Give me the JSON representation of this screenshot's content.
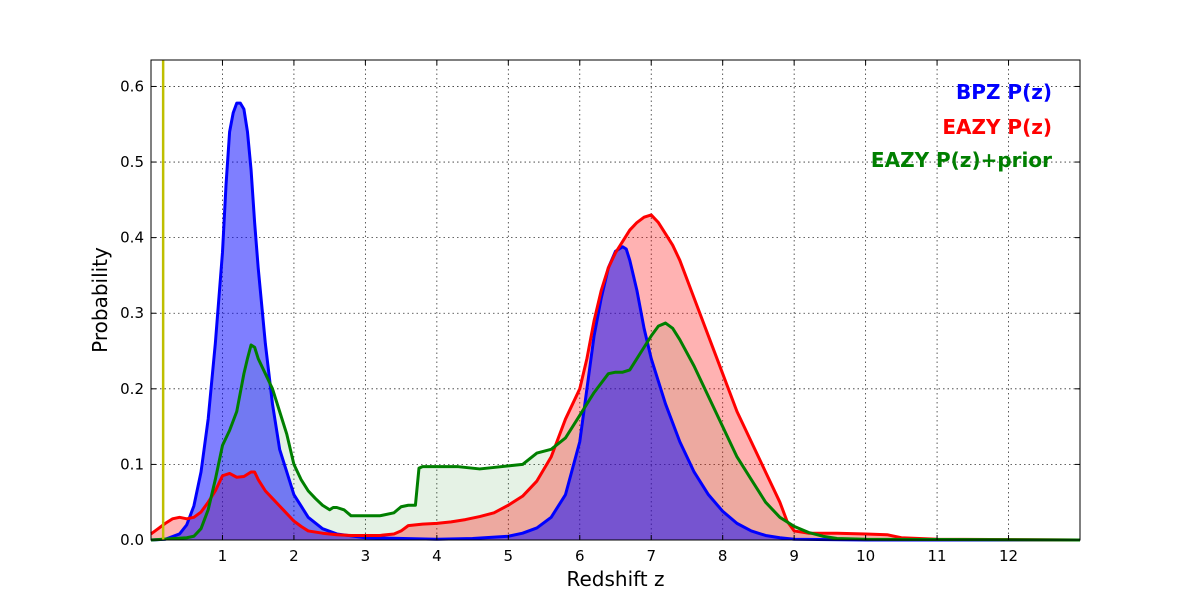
{
  "chart_data": {
    "type": "area",
    "xlabel": "Redshift z",
    "ylabel": "Probability",
    "xlim": [
      0,
      13
    ],
    "ylim": [
      0,
      0.635
    ],
    "x_ticks": [
      1,
      2,
      3,
      4,
      5,
      6,
      7,
      8,
      9,
      10,
      11,
      12
    ],
    "y_ticks": [
      0.0,
      0.1,
      0.2,
      0.3,
      0.4,
      0.5,
      0.6
    ],
    "y_tick_labels": [
      "0.0",
      "0.1",
      "0.2",
      "0.3",
      "0.4",
      "0.5",
      "0.6"
    ],
    "grid": true,
    "legend_placement": "top-right",
    "vertical_marker": {
      "x": 0.17,
      "color": "#bfbf00"
    },
    "series": [
      {
        "name": "BPZ P(z)",
        "color": "#0000ff",
        "fill": "#0000ff",
        "fill_opacity": 0.5,
        "points": [
          [
            0,
            0
          ],
          [
            0.2,
            0.001
          ],
          [
            0.4,
            0.008
          ],
          [
            0.5,
            0.02
          ],
          [
            0.6,
            0.045
          ],
          [
            0.7,
            0.09
          ],
          [
            0.8,
            0.16
          ],
          [
            0.9,
            0.26
          ],
          [
            1.0,
            0.38
          ],
          [
            1.05,
            0.47
          ],
          [
            1.1,
            0.54
          ],
          [
            1.15,
            0.565
          ],
          [
            1.2,
            0.578
          ],
          [
            1.25,
            0.578
          ],
          [
            1.3,
            0.57
          ],
          [
            1.35,
            0.54
          ],
          [
            1.4,
            0.49
          ],
          [
            1.45,
            0.42
          ],
          [
            1.5,
            0.36
          ],
          [
            1.55,
            0.31
          ],
          [
            1.6,
            0.26
          ],
          [
            1.7,
            0.18
          ],
          [
            1.8,
            0.12
          ],
          [
            1.9,
            0.09
          ],
          [
            2.0,
            0.06
          ],
          [
            2.1,
            0.045
          ],
          [
            2.2,
            0.03
          ],
          [
            2.4,
            0.015
          ],
          [
            2.6,
            0.008
          ],
          [
            3.0,
            0.003
          ],
          [
            4.0,
            0.001
          ],
          [
            4.5,
            0.002
          ],
          [
            5.0,
            0.005
          ],
          [
            5.2,
            0.009
          ],
          [
            5.4,
            0.016
          ],
          [
            5.6,
            0.03
          ],
          [
            5.8,
            0.06
          ],
          [
            6.0,
            0.13
          ],
          [
            6.1,
            0.2
          ],
          [
            6.2,
            0.27
          ],
          [
            6.3,
            0.32
          ],
          [
            6.4,
            0.36
          ],
          [
            6.5,
            0.382
          ],
          [
            6.6,
            0.388
          ],
          [
            6.65,
            0.385
          ],
          [
            6.7,
            0.37
          ],
          [
            6.8,
            0.33
          ],
          [
            6.9,
            0.28
          ],
          [
            7.0,
            0.24
          ],
          [
            7.2,
            0.18
          ],
          [
            7.4,
            0.13
          ],
          [
            7.6,
            0.09
          ],
          [
            7.8,
            0.06
          ],
          [
            8.0,
            0.038
          ],
          [
            8.2,
            0.022
          ],
          [
            8.4,
            0.012
          ],
          [
            8.6,
            0.006
          ],
          [
            8.8,
            0.003
          ],
          [
            9.0,
            0.001
          ],
          [
            10,
            0
          ],
          [
            13,
            0
          ]
        ]
      },
      {
        "name": "EAZY P(z)",
        "color": "#ff0000",
        "fill": "#ff0000",
        "fill_opacity": 0.3,
        "points": [
          [
            0,
            0.008
          ],
          [
            0.1,
            0.015
          ],
          [
            0.2,
            0.022
          ],
          [
            0.3,
            0.028
          ],
          [
            0.4,
            0.03
          ],
          [
            0.5,
            0.028
          ],
          [
            0.6,
            0.03
          ],
          [
            0.7,
            0.037
          ],
          [
            0.8,
            0.05
          ],
          [
            0.9,
            0.065
          ],
          [
            1.0,
            0.085
          ],
          [
            1.1,
            0.088
          ],
          [
            1.2,
            0.083
          ],
          [
            1.3,
            0.084
          ],
          [
            1.4,
            0.09
          ],
          [
            1.45,
            0.09
          ],
          [
            1.5,
            0.08
          ],
          [
            1.6,
            0.065
          ],
          [
            1.7,
            0.055
          ],
          [
            1.8,
            0.045
          ],
          [
            1.9,
            0.035
          ],
          [
            2.0,
            0.025
          ],
          [
            2.1,
            0.018
          ],
          [
            2.2,
            0.012
          ],
          [
            2.4,
            0.009
          ],
          [
            2.6,
            0.007
          ],
          [
            2.8,
            0.006
          ],
          [
            3.0,
            0.006
          ],
          [
            3.2,
            0.006
          ],
          [
            3.4,
            0.008
          ],
          [
            3.5,
            0.012
          ],
          [
            3.6,
            0.019
          ],
          [
            3.8,
            0.021
          ],
          [
            4.0,
            0.022
          ],
          [
            4.2,
            0.024
          ],
          [
            4.4,
            0.027
          ],
          [
            4.6,
            0.031
          ],
          [
            4.8,
            0.036
          ],
          [
            5.0,
            0.046
          ],
          [
            5.2,
            0.058
          ],
          [
            5.4,
            0.078
          ],
          [
            5.6,
            0.11
          ],
          [
            5.8,
            0.16
          ],
          [
            6.0,
            0.2
          ],
          [
            6.1,
            0.24
          ],
          [
            6.2,
            0.29
          ],
          [
            6.3,
            0.33
          ],
          [
            6.4,
            0.36
          ],
          [
            6.5,
            0.38
          ],
          [
            6.6,
            0.395
          ],
          [
            6.7,
            0.41
          ],
          [
            6.8,
            0.42
          ],
          [
            6.9,
            0.427
          ],
          [
            7.0,
            0.43
          ],
          [
            7.1,
            0.42
          ],
          [
            7.2,
            0.405
          ],
          [
            7.3,
            0.39
          ],
          [
            7.4,
            0.37
          ],
          [
            7.6,
            0.32
          ],
          [
            7.8,
            0.27
          ],
          [
            8.0,
            0.22
          ],
          [
            8.2,
            0.17
          ],
          [
            8.4,
            0.13
          ],
          [
            8.6,
            0.09
          ],
          [
            8.8,
            0.05
          ],
          [
            8.9,
            0.025
          ],
          [
            9.0,
            0.012
          ],
          [
            9.2,
            0.009
          ],
          [
            9.6,
            0.009
          ],
          [
            10.0,
            0.008
          ],
          [
            10.3,
            0.007
          ],
          [
            10.5,
            0.003
          ],
          [
            11,
            0.001
          ],
          [
            13,
            0
          ]
        ]
      },
      {
        "name": "EAZY P(z)+prior",
        "color": "#007f00",
        "fill": "#007f00",
        "fill_opacity": 0.1,
        "points": [
          [
            0,
            0
          ],
          [
            0.5,
            0.003
          ],
          [
            0.6,
            0.005
          ],
          [
            0.7,
            0.015
          ],
          [
            0.8,
            0.04
          ],
          [
            0.9,
            0.08
          ],
          [
            1.0,
            0.125
          ],
          [
            1.1,
            0.145
          ],
          [
            1.2,
            0.17
          ],
          [
            1.3,
            0.22
          ],
          [
            1.35,
            0.24
          ],
          [
            1.4,
            0.258
          ],
          [
            1.45,
            0.255
          ],
          [
            1.5,
            0.24
          ],
          [
            1.6,
            0.22
          ],
          [
            1.7,
            0.2
          ],
          [
            1.8,
            0.17
          ],
          [
            1.9,
            0.14
          ],
          [
            2.0,
            0.1
          ],
          [
            2.1,
            0.08
          ],
          [
            2.2,
            0.065
          ],
          [
            2.3,
            0.055
          ],
          [
            2.4,
            0.046
          ],
          [
            2.5,
            0.04
          ],
          [
            2.55,
            0.043
          ],
          [
            2.6,
            0.043
          ],
          [
            2.7,
            0.04
          ],
          [
            2.8,
            0.032
          ],
          [
            3.0,
            0.032
          ],
          [
            3.2,
            0.032
          ],
          [
            3.4,
            0.036
          ],
          [
            3.5,
            0.044
          ],
          [
            3.6,
            0.046
          ],
          [
            3.7,
            0.046
          ],
          [
            3.75,
            0.095
          ],
          [
            3.8,
            0.097
          ],
          [
            4.0,
            0.097
          ],
          [
            4.3,
            0.097
          ],
          [
            4.6,
            0.094
          ],
          [
            4.8,
            0.096
          ],
          [
            5.0,
            0.098
          ],
          [
            5.2,
            0.1
          ],
          [
            5.4,
            0.115
          ],
          [
            5.6,
            0.12
          ],
          [
            5.8,
            0.135
          ],
          [
            6.0,
            0.165
          ],
          [
            6.2,
            0.195
          ],
          [
            6.4,
            0.22
          ],
          [
            6.5,
            0.222
          ],
          [
            6.6,
            0.222
          ],
          [
            6.7,
            0.225
          ],
          [
            6.8,
            0.24
          ],
          [
            6.9,
            0.255
          ],
          [
            7.0,
            0.27
          ],
          [
            7.1,
            0.283
          ],
          [
            7.2,
            0.287
          ],
          [
            7.3,
            0.28
          ],
          [
            7.4,
            0.265
          ],
          [
            7.6,
            0.23
          ],
          [
            7.8,
            0.19
          ],
          [
            8.0,
            0.15
          ],
          [
            8.2,
            0.11
          ],
          [
            8.4,
            0.08
          ],
          [
            8.6,
            0.05
          ],
          [
            8.8,
            0.03
          ],
          [
            9.0,
            0.018
          ],
          [
            9.2,
            0.01
          ],
          [
            9.4,
            0.005
          ],
          [
            9.6,
            0.002
          ],
          [
            10,
            0.001
          ],
          [
            13,
            0
          ]
        ]
      }
    ]
  }
}
